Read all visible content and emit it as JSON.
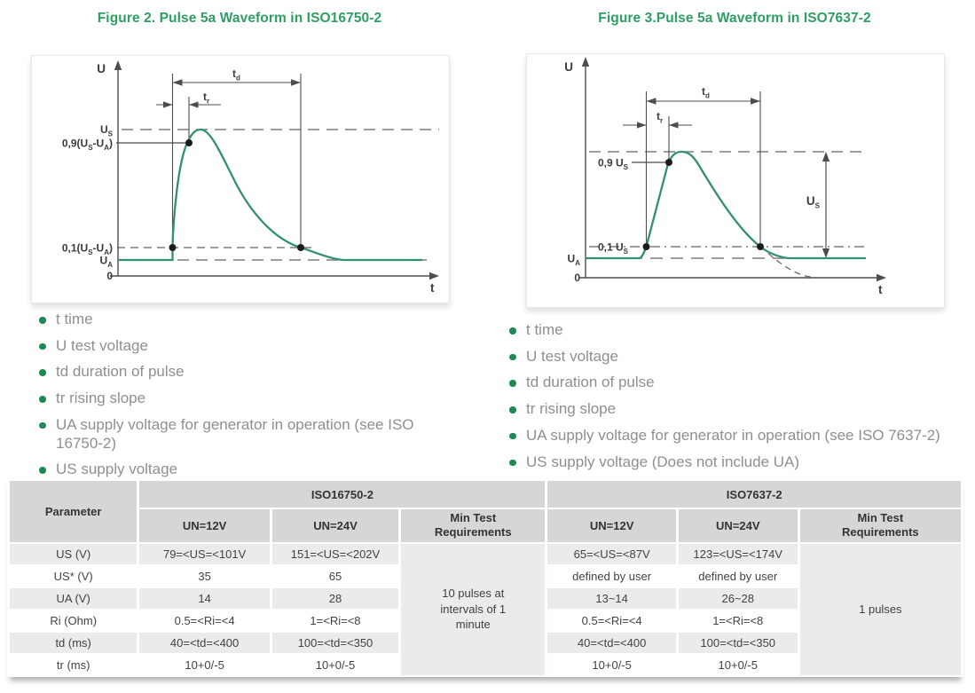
{
  "colors": {
    "accent_green": "#2f9e62",
    "bullet_green": "#1e8a52",
    "curve_green": "#33916a",
    "table_header_bg": "#d5d7d5",
    "table_alt_row_bg": "#e9ece9"
  },
  "figure2": {
    "caption": "Figure 2. Pulse 5a Waveform in ISO16750-2",
    "labels": {
      "u": [
        {
          "t": "U"
        }
      ],
      "t": [
        {
          "t": "t"
        }
      ],
      "zero": [
        {
          "t": "0"
        }
      ],
      "us": [
        {
          "t": "U"
        },
        {
          "t": "S",
          "sub": true
        }
      ],
      "ua": [
        {
          "t": "U"
        },
        {
          "t": "A",
          "sub": true
        }
      ],
      "p09": [
        {
          "t": "0,9(U"
        },
        {
          "t": "S",
          "sub": true
        },
        {
          "t": "-U"
        },
        {
          "t": "A",
          "sub": true
        },
        {
          "t": ")"
        }
      ],
      "p01": [
        {
          "t": "0,1(U"
        },
        {
          "t": "S",
          "sub": true
        },
        {
          "t": "-U"
        },
        {
          "t": "A",
          "sub": true
        },
        {
          "t": ")"
        }
      ],
      "td": [
        {
          "t": "t"
        },
        {
          "t": "d",
          "sub": true
        }
      ],
      "tr": [
        {
          "t": "t"
        },
        {
          "t": "r",
          "sub": true
        }
      ]
    },
    "bullets": [
      "t time",
      "U test voltage",
      "td duration of pulse",
      "tr rising slope",
      "UA supply voltage for generator in operation (see ISO 16750-2)",
      "US supply voltage"
    ]
  },
  "figure3": {
    "caption": "Figure 3.Pulse 5a Waveform in ISO7637-2",
    "labels": {
      "u": [
        {
          "t": "U"
        }
      ],
      "t": [
        {
          "t": "t"
        }
      ],
      "zero": [
        {
          "t": "0"
        }
      ],
      "us": [
        {
          "t": "U"
        },
        {
          "t": "S",
          "sub": true
        }
      ],
      "ua": [
        {
          "t": "U"
        },
        {
          "t": "A",
          "sub": true
        }
      ],
      "p09": [
        {
          "t": "0,9 U"
        },
        {
          "t": "S",
          "sub": true
        }
      ],
      "p01": [
        {
          "t": "0,1 U"
        },
        {
          "t": "S",
          "sub": true
        }
      ],
      "td": [
        {
          "t": "t"
        },
        {
          "t": "d",
          "sub": true
        }
      ],
      "tr": [
        {
          "t": "t"
        },
        {
          "t": "r",
          "sub": true
        }
      ]
    },
    "bullets": [
      "t time",
      "U test voltage",
      "td duration of pulse",
      "tr rising slope",
      "UA supply voltage for generator in operation (see ISO 7637-2)",
      "US supply voltage (Does not include UA)"
    ]
  },
  "table": {
    "param_header": "Parameter",
    "groups": [
      "ISO16750-2",
      "ISO7637-2"
    ],
    "sub": [
      "UN=12V",
      "UN=24V",
      "Min Test Requirements",
      "UN=12V",
      "UN=24V",
      "Min Test Requirements"
    ],
    "min_req": [
      "10 pulses at intervals of 1 minute",
      "1 pulses"
    ],
    "rows": [
      {
        "param": "US (V)",
        "c16_12": "79=<US=<101V",
        "c16_24": "151=<US=<202V",
        "c76_12": "65=<US=<87V",
        "c76_24": "123=<US=<174V"
      },
      {
        "param": "US* (V)",
        "c16_12": "35",
        "c16_24": "65",
        "c76_12": "defined by user",
        "c76_24": "defined by user"
      },
      {
        "param": "UA (V)",
        "c16_12": "14",
        "c16_24": "28",
        "c76_12": "13~14",
        "c76_24": "26~28"
      },
      {
        "param": "Ri (Ohm)",
        "c16_12": "0.5=<Ri=<4",
        "c16_24": "1=<Ri=<8",
        "c76_12": "0.5=<Ri=<4",
        "c76_24": "1=<Ri=<8"
      },
      {
        "param": "td (ms)",
        "c16_12": "40=<td=<400",
        "c16_24": "100=<td=<350",
        "c76_12": "40=<td=<400",
        "c76_24": "100=<td=<350"
      },
      {
        "param": "tr (ms)",
        "c16_12": "10+0/-5",
        "c16_24": "10+0/-5",
        "c76_12": "10+0/-5",
        "c76_24": "10+0/-5"
      }
    ]
  }
}
